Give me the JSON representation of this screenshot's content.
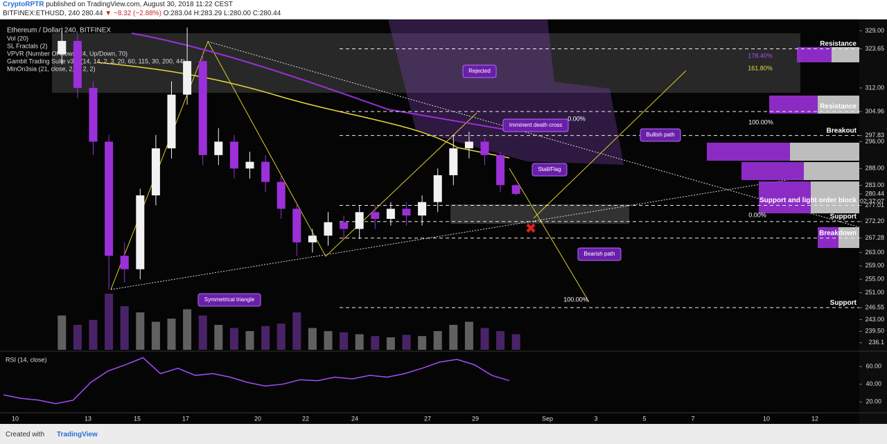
{
  "header": {
    "author": "CryptoRPTR",
    "published": "published on TradingView.com, August 30, 2018 11:22 CEST",
    "symbol": "BITFINEX:ETHUSD, 240",
    "last": "280.44",
    "change": "▼ −8.32 (−2.88%)",
    "ohlc": "O:283.04 H:283.29 L:280.00 C:280.44"
  },
  "footer": {
    "created": "Created with",
    "brand": "TradingView"
  },
  "chart_data": {
    "type": "candlestick",
    "title": "Ethereum / Dollar, 240, BITFINEX",
    "indicators": [
      "Vol (20)",
      "SL Fractals (2)",
      "VPVR (Number Of Rows, 24, Up/Down, 70)",
      "Gambit Trading Suite v3.0 (14, 14, 2, 3, 20, 60, 115, 30, 200, 44)",
      "MinOn3sia (21, close, 2, 2, 2, 2)"
    ],
    "x_labels": [
      "10",
      "13",
      "15",
      "17",
      "20",
      "22",
      "24",
      "27",
      "29",
      "Sep",
      "3",
      "5",
      "7",
      "10",
      "12"
    ],
    "open": [
      322,
      326,
      312,
      296,
      262,
      258,
      280,
      294,
      310,
      320,
      292,
      296,
      288,
      290,
      284,
      276,
      266,
      268,
      272,
      270,
      275,
      273,
      276,
      274,
      278,
      286,
      294,
      296,
      292,
      283.04
    ],
    "high": [
      330,
      328,
      314,
      298,
      266,
      282,
      298,
      314,
      330,
      322,
      300,
      298,
      293,
      292,
      286,
      278,
      270,
      275,
      274,
      277,
      277,
      278,
      278,
      280,
      288,
      298,
      299,
      297,
      293,
      283.29
    ],
    "low": [
      319,
      309,
      292,
      252,
      254,
      255,
      277,
      291,
      307,
      289,
      289,
      285,
      285,
      281,
      273,
      262,
      263,
      265,
      267,
      267,
      270,
      271,
      271,
      271,
      275,
      283,
      291,
      289,
      281,
      280
    ],
    "close": [
      326,
      312,
      296,
      262,
      258,
      280,
      294,
      310,
      320,
      292,
      296,
      288,
      290,
      284,
      276,
      266,
      268,
      272,
      270,
      275,
      273,
      276,
      274,
      278,
      286,
      294,
      296,
      292,
      283.04,
      280.44
    ],
    "up_color": "#f2f2f2",
    "down_color": "#9b30d9",
    "ylim": [
      234,
      332
    ],
    "yticks": [
      {
        "value": 329,
        "label": "329.00"
      },
      323.65,
      {
        "value": 312,
        "label": "312.00"
      },
      304.96,
      297.83,
      {
        "value": 296,
        "label": "296.00"
      },
      {
        "value": 288,
        "label": "288.00"
      },
      {
        "value": 283,
        "label": "283.00"
      },
      280.44,
      277.01,
      {
        "value": 272.2,
        "label": "272.20"
      },
      267.28,
      {
        "value": 263,
        "label": "263.00"
      },
      {
        "value": 259,
        "label": "259.00"
      },
      {
        "value": 255,
        "label": "255.00"
      },
      {
        "value": 251,
        "label": "251.00"
      },
      246.55,
      {
        "value": 243,
        "label": "243.00"
      },
      {
        "value": 239.5,
        "label": "239.50"
      },
      236.1
    ],
    "countdown": "02:37:07",
    "levels": [
      {
        "label": "Resistance",
        "price": 323.65
      },
      {
        "label": "Resistance",
        "price": 304.96
      },
      {
        "label": "Breakout",
        "price": 297.83
      },
      {
        "label": "Support and light order block",
        "price": 277.01
      },
      {
        "label": "Support",
        "price": 272.2
      },
      {
        "label": "Breakdown",
        "price": 267.28
      },
      {
        "label": "Support",
        "price": 246.55
      }
    ],
    "fib_labels": [
      "178.40%",
      "161.80%",
      "0.00%",
      "100.00%",
      "0.00%",
      "100.00%"
    ],
    "callouts": [
      "Rejected",
      "Imminent death cross",
      "Stall/Flag",
      "Bullish path",
      "Bearish path",
      "Symmetrical triangle"
    ],
    "volume": [
      55,
      40,
      48,
      90,
      70,
      60,
      45,
      50,
      65,
      55,
      40,
      35,
      30,
      38,
      42,
      60,
      35,
      30,
      28,
      25,
      22,
      20,
      24,
      22,
      30,
      40,
      45,
      35,
      30,
      25
    ],
    "volume_ylim": [
      0,
      100
    ],
    "rsi": {
      "title": "RSI (14, close)",
      "values": [
        28,
        24,
        22,
        18,
        22,
        42,
        55,
        62,
        70,
        52,
        58,
        50,
        52,
        48,
        42,
        38,
        40,
        45,
        44,
        48,
        46,
        50,
        48,
        52,
        58,
        65,
        68,
        62,
        50,
        44
      ],
      "color": "#a64cff",
      "ylim": [
        10,
        75
      ],
      "yticks": [
        {
          "value": 20,
          "label": "20.00"
        },
        {
          "value": 40,
          "label": "40.00"
        },
        {
          "value": 60,
          "label": "60.00"
        }
      ]
    }
  }
}
